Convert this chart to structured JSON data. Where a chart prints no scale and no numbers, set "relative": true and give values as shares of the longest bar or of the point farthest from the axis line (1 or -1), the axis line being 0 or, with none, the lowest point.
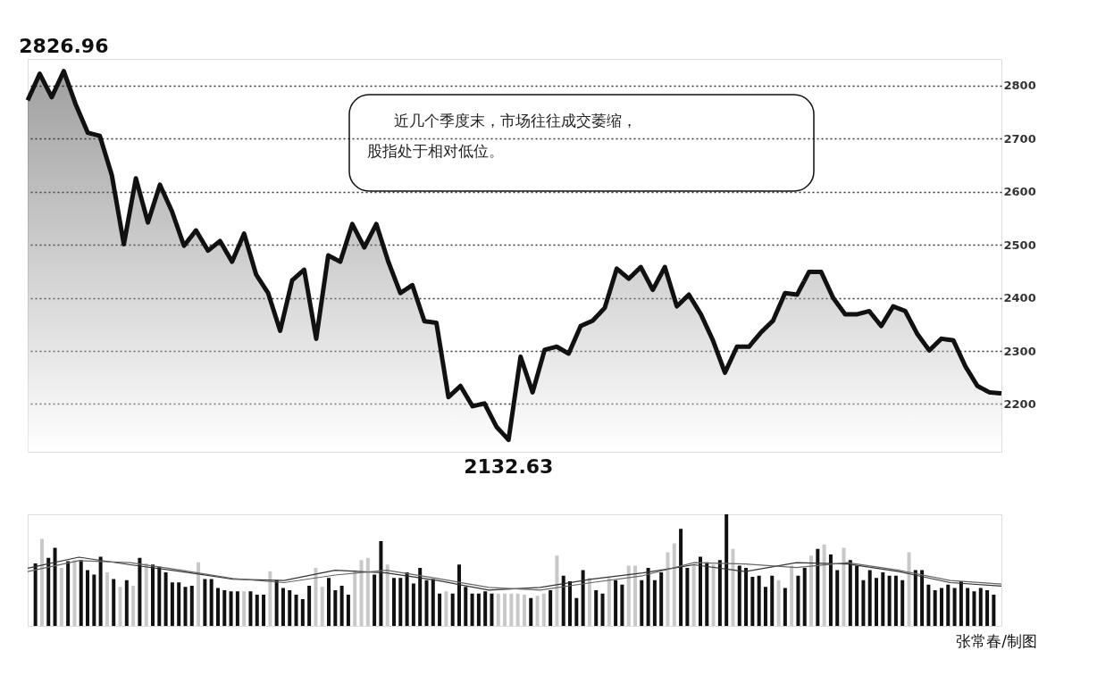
{
  "chart_data": [
    {
      "type": "area",
      "categories": [
        null,
        null,
        null,
        null,
        null,
        null,
        null,
        null,
        null,
        null,
        null,
        null,
        null,
        null,
        null,
        null,
        null,
        null,
        null,
        null,
        null,
        null,
        null,
        null,
        null,
        null,
        null,
        null,
        null,
        null,
        null,
        null,
        null,
        null,
        null,
        null,
        null,
        null,
        null,
        null,
        null,
        null,
        null,
        null,
        null,
        null,
        null,
        null,
        null,
        null,
        null,
        null,
        null,
        null,
        null,
        null,
        null,
        null,
        null,
        null,
        null,
        null,
        null,
        null,
        null,
        null,
        null,
        null,
        null,
        null,
        null,
        null,
        null,
        null,
        null,
        null,
        null,
        null,
        null,
        null,
        null,
        null
      ],
      "series": [
        {
          "color": "#111111",
          "values": [
            2772,
            2822,
            2778,
            2826.96,
            2764,
            2711,
            2705,
            2631,
            2501,
            2625,
            2542,
            2613,
            2563,
            2498,
            2527,
            2489,
            2507,
            2468,
            2521,
            2444,
            2409,
            2338,
            2433,
            2453,
            2323,
            2480,
            2468,
            2539,
            2495,
            2539,
            2468,
            2409,
            2424,
            2356,
            2353,
            2213,
            2234,
            2196,
            2201,
            2157,
            2132.63,
            2289,
            2222,
            2302,
            2308,
            2295,
            2347,
            2357,
            2381,
            2455,
            2436,
            2458,
            2415,
            2458,
            2384,
            2406,
            2369,
            2320,
            2259,
            2308,
            2308,
            2335,
            2357,
            2409,
            2406,
            2449,
            2449,
            2400,
            2369,
            2369,
            2375,
            2347,
            2384,
            2375,
            2332,
            2301,
            2323,
            2320,
            2271,
            2234,
            2222,
            2220
          ]
        }
      ],
      "ylim": [
        2110,
        2850
      ],
      "yticks": [
        {
          "value": 2200,
          "label": "2200"
        },
        {
          "value": 2300,
          "label": "2300"
        },
        {
          "value": 2400,
          "label": "2400"
        },
        {
          "value": 2500,
          "label": "2500"
        },
        {
          "value": 2600,
          "label": "2600"
        },
        {
          "value": 2700,
          "label": "2700"
        },
        {
          "value": 2800,
          "label": "2800"
        }
      ],
      "grid": "y",
      "legend": false,
      "tick_labels": "y",
      "line_style": "solid",
      "marker": "none",
      "annotations": [
        {
          "text": "2826.96",
          "y": 2826.96
        },
        {
          "text": "2132.63",
          "y": 2132.63
        },
        "近几个季度末，市场往往成交萎缩，",
        "股指处于相对低位。"
      ]
    },
    {
      "type": "bar",
      "relative": true,
      "legend": false,
      "grid": false,
      "tick_labels": false,
      "categories": [
        null,
        null,
        null,
        null,
        null,
        null,
        null,
        null,
        null,
        null,
        null,
        null,
        null,
        null,
        null,
        null,
        null,
        null,
        null,
        null,
        null,
        null,
        null,
        null,
        null,
        null,
        null,
        null,
        null,
        null,
        null,
        null,
        null,
        null,
        null,
        null,
        null,
        null,
        null,
        null,
        null,
        null,
        null,
        null,
        null,
        null,
        null,
        null,
        null,
        null,
        null,
        null,
        null,
        null,
        null,
        null,
        null,
        null,
        null,
        null,
        null,
        null,
        null,
        null,
        null,
        null,
        null,
        null,
        null,
        null,
        null,
        null,
        null,
        null,
        null,
        null,
        null,
        null,
        null,
        null,
        null,
        null,
        null,
        null,
        null,
        null,
        null,
        null,
        null,
        null,
        null,
        null,
        null,
        null,
        null,
        null,
        null,
        null,
        null,
        null,
        null,
        null,
        null,
        null,
        null,
        null,
        null,
        null,
        null,
        null,
        null,
        null,
        null,
        null,
        null,
        null,
        null,
        null,
        null,
        null,
        null,
        null,
        null,
        null,
        null,
        null,
        null,
        null,
        null,
        null,
        null,
        null,
        null,
        null,
        null,
        null,
        null,
        null,
        null,
        null,
        null,
        null,
        null,
        null,
        null,
        null,
        null,
        null
      ],
      "series": [
        {
          "type": "bar",
          "values": [
            0.56,
            0.78,
            0.61,
            0.7,
            0.52,
            0.58,
            0.59,
            0.59,
            0.5,
            0.46,
            0.62,
            0.48,
            0.42,
            0.35,
            0.41,
            0.36,
            0.61,
            0.56,
            0.55,
            0.53,
            0.48,
            0.39,
            0.39,
            0.35,
            0.36,
            0.57,
            0.42,
            0.42,
            0.34,
            0.32,
            0.31,
            0.31,
            0.31,
            0.31,
            0.28,
            0.28,
            0.49,
            0.41,
            0.34,
            0.32,
            0.28,
            0.24,
            0.36,
            0.52,
            0.35,
            0.43,
            0.32,
            0.36,
            0.28,
            0.5,
            0.59,
            0.61,
            0.46,
            0.76,
            0.55,
            0.43,
            0.43,
            0.48,
            0.38,
            0.52,
            0.41,
            0.42,
            0.29,
            0.31,
            0.29,
            0.55,
            0.35,
            0.29,
            0.29,
            0.31,
            0.29,
            0.29,
            0.29,
            0.29,
            0.29,
            0.28,
            0.25,
            0.27,
            0.29,
            0.32,
            0.63,
            0.45,
            0.4,
            0.25,
            0.5,
            0.43,
            0.32,
            0.29,
            0.43,
            0.41,
            0.37,
            0.54,
            0.54,
            0.41,
            0.52,
            0.41,
            0.48,
            0.66,
            0.74,
            0.87,
            0.52,
            0.54,
            0.62,
            0.57,
            0.55,
            0.59,
            1.0,
            0.69,
            0.54,
            0.52,
            0.44,
            0.45,
            0.35,
            0.45,
            0.41,
            0.34,
            0.54,
            0.45,
            0.52,
            0.63,
            0.69,
            0.73,
            0.64,
            0.5,
            0.7,
            0.59,
            0.54,
            0.41,
            0.5,
            0.43,
            0.48,
            0.45,
            0.45,
            0.41,
            0.66,
            0.5,
            0.5,
            0.37,
            0.32,
            0.34,
            0.37,
            0.34,
            0.4,
            0.34,
            0.31,
            0.34,
            0.32,
            0.28
          ],
          "colors": [
            "#111111",
            "#c8c8c8",
            "#111111",
            "#111111",
            "#c8c8c8",
            "#111111",
            "#c8c8c8",
            "#111111",
            "#111111",
            "#111111",
            "#111111",
            "#c8c8c8",
            "#111111",
            "#c8c8c8",
            "#111111",
            "#c8c8c8",
            "#111111",
            "#c8c8c8",
            "#111111",
            "#111111",
            "#111111",
            "#111111",
            "#111111",
            "#111111",
            "#111111",
            "#c8c8c8",
            "#111111",
            "#111111",
            "#111111",
            "#111111",
            "#111111",
            "#111111",
            "#c8c8c8",
            "#111111",
            "#111111",
            "#111111",
            "#c8c8c8",
            "#111111",
            "#111111",
            "#111111",
            "#111111",
            "#111111",
            "#111111",
            "#c8c8c8",
            "#c8c8c8",
            "#111111",
            "#111111",
            "#111111",
            "#111111",
            "#c8c8c8",
            "#c8c8c8",
            "#c8c8c8",
            "#111111",
            "#111111",
            "#c8c8c8",
            "#111111",
            "#111111",
            "#111111",
            "#111111",
            "#111111",
            "#111111",
            "#111111",
            "#111111",
            "#c8c8c8",
            "#111111",
            "#111111",
            "#111111",
            "#111111",
            "#111111",
            "#111111",
            "#111111",
            "#c8c8c8",
            "#c8c8c8",
            "#c8c8c8",
            "#c8c8c8",
            "#c8c8c8",
            "#111111",
            "#c8c8c8",
            "#c8c8c8",
            "#111111",
            "#c8c8c8",
            "#111111",
            "#111111",
            "#111111",
            "#111111",
            "#c8c8c8",
            "#111111",
            "#111111",
            "#c8c8c8",
            "#111111",
            "#111111",
            "#c8c8c8",
            "#c8c8c8",
            "#111111",
            "#111111",
            "#111111",
            "#111111",
            "#c8c8c8",
            "#c8c8c8",
            "#111111",
            "#111111",
            "#c8c8c8",
            "#111111",
            "#111111",
            "#c8c8c8",
            "#111111",
            "#111111",
            "#c8c8c8",
            "#111111",
            "#111111",
            "#111111",
            "#111111",
            "#111111",
            "#111111",
            "#c8c8c8",
            "#111111",
            "#c8c8c8",
            "#111111",
            "#111111",
            "#c8c8c8",
            "#111111",
            "#c8c8c8",
            "#111111",
            "#111111",
            "#c8c8c8",
            "#111111",
            "#111111",
            "#111111",
            "#111111",
            "#111111",
            "#111111",
            "#111111",
            "#111111",
            "#111111",
            "#c8c8c8",
            "#111111",
            "#111111",
            "#111111",
            "#111111",
            "#111111",
            "#111111",
            "#111111",
            "#111111",
            "#111111",
            "#111111",
            "#111111",
            "#111111",
            "#111111"
          ]
        }
      ]
    },
    {
      "type": "line",
      "relative": true,
      "legend": false,
      "grid": false,
      "tick_labels": false,
      "categories": [
        null,
        null,
        null,
        null,
        null,
        null,
        null,
        null,
        null,
        null,
        null,
        null,
        null,
        null,
        null,
        null,
        null,
        null,
        null,
        null
      ],
      "series": [
        {
          "type": "line",
          "color": "#333333",
          "values": [
            0.84,
            1,
            0.89,
            0.79,
            0.68,
            0.66,
            0.81,
            0.77,
            0.66,
            0.52,
            0.56,
            0.68,
            0.77,
            0.89,
            0.79,
            0.92,
            0.9,
            0.79,
            0.63,
            0.58
          ]
        },
        {
          "type": "line",
          "color": "#666666",
          "values": [
            0.79,
            0.95,
            0.92,
            0.81,
            0.69,
            0.63,
            0.74,
            0.81,
            0.69,
            0.56,
            0.52,
            0.63,
            0.73,
            0.92,
            0.9,
            0.85,
            0.92,
            0.81,
            0.66,
            0.61
          ]
        }
      ],
      "annotations": [
        "张常春/制图"
      ]
    }
  ]
}
